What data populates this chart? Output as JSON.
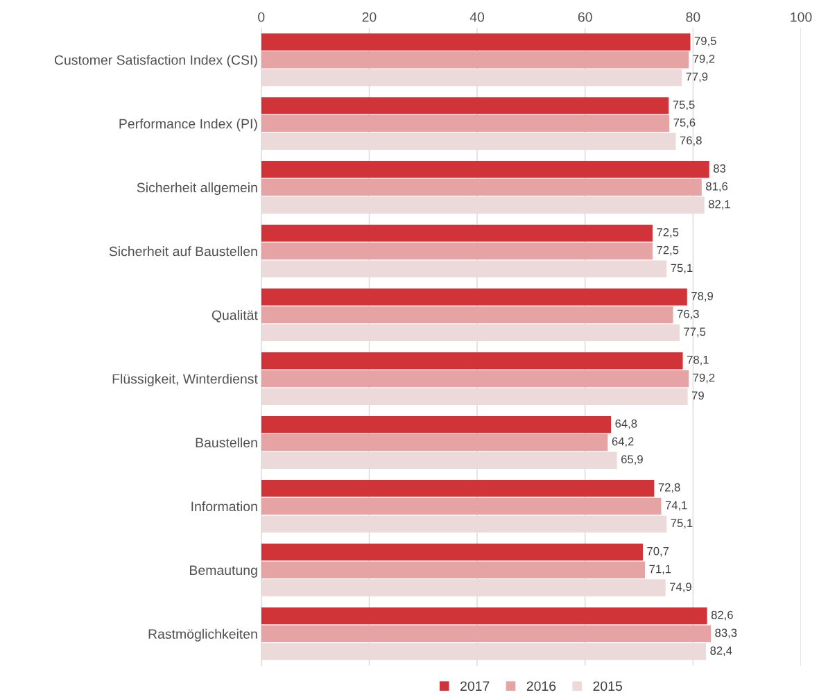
{
  "chart_data": {
    "type": "bar",
    "orientation": "horizontal",
    "categories": [
      "Customer Satisfaction Index (CSI)",
      "Performance Index (PI)",
      "Sicherheit allgemein",
      "Sicherheit auf Baustellen",
      "Qualität",
      "Flüssigkeit, Winterdienst",
      "Baustellen",
      "Information",
      "Bemautung",
      "Rastmöglichkeiten"
    ],
    "series": [
      {
        "name": "2017",
        "color": "#d13438",
        "values": [
          79.5,
          75.5,
          83,
          72.5,
          78.9,
          78.1,
          64.8,
          72.8,
          70.7,
          82.6
        ],
        "value_labels": [
          "79,5",
          "75,5",
          "83",
          "72,5",
          "78,9",
          "78,1",
          "64,8",
          "72,8",
          "70,7",
          "82,6"
        ]
      },
      {
        "name": "2016",
        "color": "#e5a3a4",
        "values": [
          79.2,
          75.6,
          81.6,
          72.5,
          76.3,
          79.2,
          64.2,
          74.1,
          71.1,
          83.3
        ],
        "value_labels": [
          "79,2",
          "75,6",
          "81,6",
          "72,5",
          "76,3",
          "79,2",
          "64,2",
          "74,1",
          "71,1",
          "83,3"
        ]
      },
      {
        "name": "2015",
        "color": "#ecd9da",
        "values": [
          77.9,
          76.8,
          82.1,
          75.1,
          77.5,
          79,
          65.9,
          75.1,
          74.9,
          82.4
        ],
        "value_labels": [
          "77,9",
          "76,8",
          "82,1",
          "75,1",
          "77,5",
          "79",
          "65,9",
          "75,1",
          "74,9",
          "82,4"
        ]
      }
    ],
    "xlim": [
      0,
      100
    ],
    "xticks": [
      0,
      20,
      40,
      60,
      80,
      100
    ],
    "grid": "x",
    "legend": "bottom"
  }
}
